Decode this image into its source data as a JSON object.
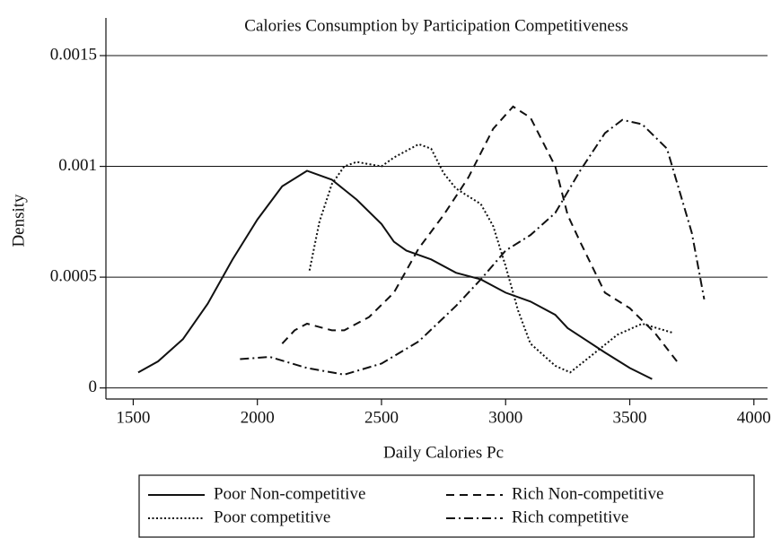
{
  "chart_data": {
    "type": "line",
    "title": "Calories Consumption by Participation Competitiveness",
    "x_label": "Daily Calories Pc",
    "y_label": "Density",
    "xlim": [
      1390,
      4055
    ],
    "ylim": [
      -5e-05,
      0.00167
    ],
    "xticks": [
      1500,
      2000,
      2500,
      3000,
      3500,
      4000
    ],
    "yticks": [
      0,
      0.0005,
      0.001,
      0.0015
    ],
    "grid": true,
    "legend": "bottom",
    "series": [
      {
        "name": "Poor Non-competitive",
        "color": "#111111",
        "dash": "solid",
        "x": [
          1520,
          1600,
          1700,
          1800,
          1900,
          2000,
          2100,
          2200,
          2300,
          2400,
          2500,
          2550,
          2600,
          2700,
          2800,
          2900,
          3000,
          3100,
          3200,
          3250,
          3400,
          3500,
          3590
        ],
        "values": [
          7e-05,
          0.00012,
          0.00022,
          0.00038,
          0.00058,
          0.00076,
          0.00091,
          0.00098,
          0.00094,
          0.00085,
          0.00074,
          0.00066,
          0.00062,
          0.00058,
          0.00052,
          0.00049,
          0.00043,
          0.00039,
          0.00033,
          0.00027,
          0.00016,
          9e-05,
          4e-05
        ]
      },
      {
        "name": "Rich Non-competitive",
        "color": "#111111",
        "dash": "dashed",
        "x": [
          2100,
          2150,
          2200,
          2300,
          2350,
          2450,
          2550,
          2650,
          2750,
          2850,
          2950,
          3030,
          3100,
          3200,
          3250,
          3300,
          3400,
          3500,
          3600,
          3690
        ],
        "values": [
          0.0002,
          0.00026,
          0.00029,
          0.00026,
          0.00026,
          0.00032,
          0.00043,
          0.00063,
          0.00078,
          0.00095,
          0.00117,
          0.00127,
          0.00122,
          0.001,
          0.00078,
          0.00066,
          0.00043,
          0.00036,
          0.00025,
          0.00012
        ]
      },
      {
        "name": "Poor competitive",
        "color": "#111111",
        "dash": "dotted",
        "x": [
          2210,
          2250,
          2300,
          2350,
          2400,
          2500,
          2550,
          2650,
          2700,
          2750,
          2800,
          2900,
          2950,
          3000,
          3050,
          3100,
          3200,
          3260,
          3350,
          3450,
          3550,
          3670
        ],
        "values": [
          0.00053,
          0.00075,
          0.00092,
          0.001,
          0.00102,
          0.001,
          0.00104,
          0.0011,
          0.00108,
          0.00097,
          0.0009,
          0.00083,
          0.00073,
          0.00055,
          0.00035,
          0.0002,
          0.0001,
          7e-05,
          0.00015,
          0.00024,
          0.00029,
          0.00025
        ]
      },
      {
        "name": "Rich competitive",
        "color": "#111111",
        "dash": "dashdot",
        "x": [
          1930,
          2050,
          2200,
          2350,
          2500,
          2650,
          2800,
          2900,
          3000,
          3100,
          3200,
          3300,
          3400,
          3470,
          3550,
          3650,
          3750,
          3800
        ],
        "values": [
          0.00013,
          0.00014,
          9e-05,
          6e-05,
          0.00011,
          0.00021,
          0.00037,
          0.00049,
          0.00062,
          0.00069,
          0.00079,
          0.00098,
          0.00115,
          0.00121,
          0.00119,
          0.00108,
          0.0007,
          0.0004
        ]
      }
    ]
  }
}
